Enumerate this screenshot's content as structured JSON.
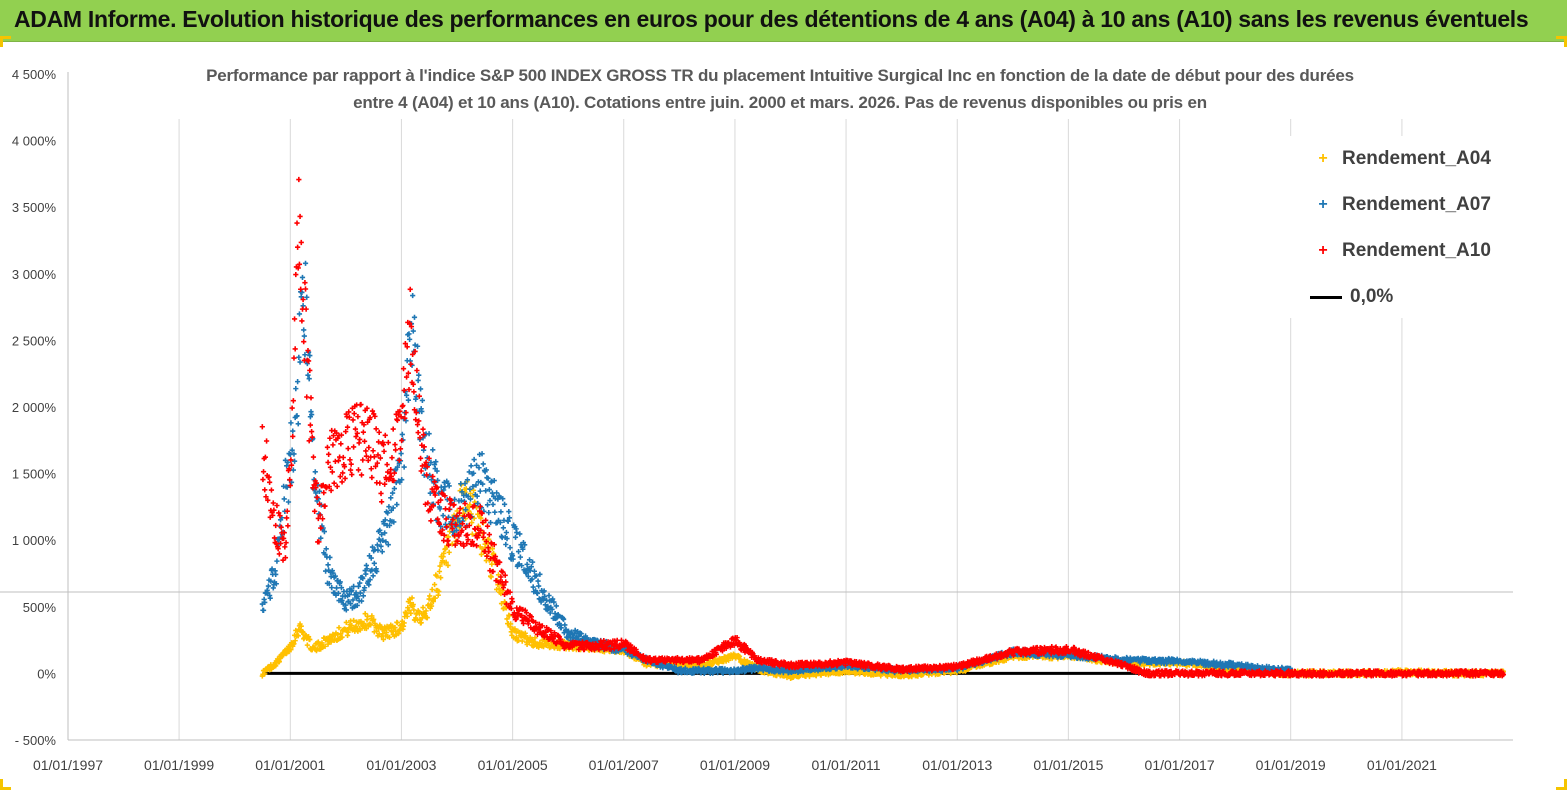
{
  "banner": {
    "title": "ADAM Informe. Evolution historique des performances en euros pour des détentions de 4 ans (A04) à 10 ans (A10) sans les revenus éventuels",
    "color": "#92d050"
  },
  "chart_data": {
    "type": "scatter",
    "title_line1": "Performance par rapport à l'indice S&P 500 INDEX GROSS TR  du placement Intuitive Surgical Inc en fonction de la date de début pour des durées",
    "title_line2": "entre 4 (A04) et 10 ans (A10).  Cotations entre juin. 2000 et mars. 2026.  Pas de  revenus disponibles ou pris en",
    "xlabel": "",
    "ylabel": "",
    "x_tick_labels": [
      "01/01/1997",
      "01/01/1999",
      "01/01/2001",
      "01/01/2003",
      "01/01/2005",
      "01/01/2007",
      "01/01/2009",
      "01/01/2011",
      "01/01/2013",
      "01/01/2015",
      "01/01/2017",
      "01/01/2019",
      "01/01/2021"
    ],
    "xlim": [
      "1997-01-01",
      "2023-01-01"
    ],
    "y_tick_labels": [
      "- 500%",
      "0%",
      "500%",
      "1 000%",
      "1 500%",
      "2 000%",
      "2 500%",
      "3 000%",
      "3 500%",
      "4 000%",
      "4 500%"
    ],
    "ylim": [
      -500,
      4500
    ],
    "grid": "vertical",
    "legend_position": "right",
    "series": [
      {
        "name": "Rendement_A04",
        "color": "#ffc000",
        "marker": "+",
        "anchors": [
          [
            "2000-07-01",
            0
          ],
          [
            "2000-10-01",
            80
          ],
          [
            "2001-01-01",
            200
          ],
          [
            "2001-03-01",
            350
          ],
          [
            "2001-06-01",
            180
          ],
          [
            "2001-09-01",
            250
          ],
          [
            "2002-01-01",
            330
          ],
          [
            "2002-06-01",
            400
          ],
          [
            "2002-09-01",
            300
          ],
          [
            "2003-01-01",
            350
          ],
          [
            "2003-03-01",
            500
          ],
          [
            "2003-06-01",
            420
          ],
          [
            "2003-09-01",
            700
          ],
          [
            "2004-01-01",
            1100
          ],
          [
            "2004-03-01",
            1350
          ],
          [
            "2004-06-01",
            1050
          ],
          [
            "2004-09-01",
            800
          ],
          [
            "2005-01-01",
            300
          ],
          [
            "2005-06-01",
            230
          ],
          [
            "2006-01-01",
            210
          ],
          [
            "2007-01-01",
            180
          ],
          [
            "2007-06-01",
            70
          ],
          [
            "2008-06-01",
            60
          ],
          [
            "2009-01-01",
            130
          ],
          [
            "2009-06-01",
            30
          ],
          [
            "2010-01-01",
            -20
          ],
          [
            "2011-01-01",
            20
          ],
          [
            "2012-01-01",
            -10
          ],
          [
            "2013-01-01",
            20
          ],
          [
            "2014-01-01",
            130
          ],
          [
            "2015-01-01",
            130
          ],
          [
            "2016-01-01",
            80
          ],
          [
            "2017-01-01",
            80
          ],
          [
            "2018-01-01",
            30
          ],
          [
            "2019-01-01",
            0
          ],
          [
            "2020-01-01",
            0
          ],
          [
            "2021-01-01",
            10
          ],
          [
            "2022-01-01",
            0
          ],
          [
            "2022-11-01",
            0
          ]
        ]
      },
      {
        "name": "Rendement_A07",
        "color": "#1f77b4",
        "marker": "+",
        "anchors": [
          [
            "2000-07-01",
            450
          ],
          [
            "2000-10-01",
            800
          ],
          [
            "2000-12-01",
            1400
          ],
          [
            "2001-02-01",
            1800
          ],
          [
            "2001-04-01",
            2900
          ],
          [
            "2001-06-01",
            1600
          ],
          [
            "2001-09-01",
            800
          ],
          [
            "2002-01-01",
            550
          ],
          [
            "2002-04-01",
            600
          ],
          [
            "2002-09-01",
            1000
          ],
          [
            "2003-01-01",
            1500
          ],
          [
            "2003-03-01",
            2600
          ],
          [
            "2003-06-01",
            1700
          ],
          [
            "2003-09-01",
            1300
          ],
          [
            "2004-01-01",
            1200
          ],
          [
            "2004-06-01",
            1450
          ],
          [
            "2005-01-01",
            1000
          ],
          [
            "2005-06-01",
            700
          ],
          [
            "2006-01-01",
            300
          ],
          [
            "2006-06-01",
            230
          ],
          [
            "2007-01-01",
            180
          ],
          [
            "2007-06-01",
            100
          ],
          [
            "2008-01-01",
            20
          ],
          [
            "2009-01-01",
            20
          ],
          [
            "2009-06-01",
            40
          ],
          [
            "2010-01-01",
            20
          ],
          [
            "2011-01-01",
            60
          ],
          [
            "2012-01-01",
            20
          ],
          [
            "2013-01-01",
            40
          ],
          [
            "2014-01-01",
            160
          ],
          [
            "2015-01-01",
            140
          ],
          [
            "2016-01-01",
            100
          ],
          [
            "2017-01-01",
            90
          ],
          [
            "2018-01-01",
            60
          ],
          [
            "2018-06-01",
            40
          ],
          [
            "2019-01-01",
            20
          ]
        ]
      },
      {
        "name": "Rendement_A10",
        "color": "#ff0000",
        "marker": "+",
        "anchors": [
          [
            "2000-07-01",
            1700
          ],
          [
            "2000-10-01",
            1100
          ],
          [
            "2000-12-01",
            900
          ],
          [
            "2001-01-01",
            1600
          ],
          [
            "2001-03-01",
            3400
          ],
          [
            "2001-05-01",
            2100
          ],
          [
            "2001-07-01",
            1100
          ],
          [
            "2001-09-01",
            1550
          ],
          [
            "2002-01-01",
            1700
          ],
          [
            "2002-06-01",
            1800
          ],
          [
            "2002-09-01",
            1500
          ],
          [
            "2003-01-01",
            1850
          ],
          [
            "2003-03-01",
            2600
          ],
          [
            "2003-06-01",
            1500
          ],
          [
            "2003-09-01",
            1200
          ],
          [
            "2004-01-01",
            1100
          ],
          [
            "2004-06-01",
            1100
          ],
          [
            "2005-01-01",
            500
          ],
          [
            "2005-06-01",
            350
          ],
          [
            "2006-01-01",
            200
          ],
          [
            "2007-01-01",
            220
          ],
          [
            "2007-06-01",
            100
          ],
          [
            "2008-06-01",
            100
          ],
          [
            "2009-01-01",
            250
          ],
          [
            "2009-06-01",
            100
          ],
          [
            "2010-01-01",
            60
          ],
          [
            "2011-01-01",
            80
          ],
          [
            "2012-01-01",
            30
          ],
          [
            "2013-01-01",
            50
          ],
          [
            "2014-01-01",
            160
          ],
          [
            "2015-01-01",
            180
          ],
          [
            "2016-01-01",
            60
          ],
          [
            "2016-06-01",
            0
          ],
          [
            "2022-11-01",
            0
          ]
        ]
      },
      {
        "name": "0,0%",
        "color": "#000000",
        "type": "line",
        "x_range": [
          "2000-07-01",
          "2016-06-01"
        ],
        "value": 0
      }
    ]
  }
}
